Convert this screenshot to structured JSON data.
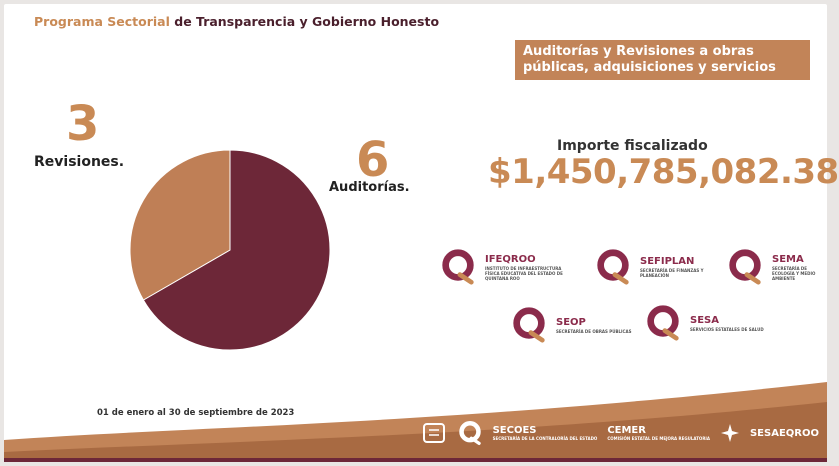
{
  "header": {
    "title_part1": "Programa Sectorial",
    "title_part2": "de Transparencia y Gobierno Honesto"
  },
  "banner": {
    "line1": "Auditorías y Revisiones a obras",
    "line2": "públicas, adquisiciones y servicios"
  },
  "chart_data": {
    "type": "pie",
    "title": "",
    "categories": [
      "Revisiones.",
      "Auditorías."
    ],
    "values": [
      3,
      6
    ],
    "colors": [
      "#bf7f56",
      "#6d2738"
    ]
  },
  "revisiones": {
    "count": "3",
    "label": "Revisiones."
  },
  "auditorias": {
    "count": "6",
    "label": "Auditorías."
  },
  "importe": {
    "label": "Importe fiscalizado",
    "value": "$1,450,785,082.38"
  },
  "entities": [
    {
      "name": "IFEQROO",
      "subtitle": "INSTITUTO DE INFRAESTRUCTURA FÍSICA EDUCATIVA DEL ESTADO DE QUINTANA ROO",
      "icon": "q-logo-icon"
    },
    {
      "name": "SEFIPLAN",
      "subtitle": "SECRETARÍA DE FINANZAS Y PLANEACIÓN",
      "icon": "q-logo-icon"
    },
    {
      "name": "SEMA",
      "subtitle": "SECRETARÍA DE ECOLOGÍA Y MEDIO AMBIENTE",
      "icon": "q-logo-icon"
    },
    {
      "name": "SEOP",
      "subtitle": "SECRETARÍA DE OBRAS PÚBLICAS",
      "icon": "q-logo-icon"
    },
    {
      "name": "SESA",
      "subtitle": "SERVICIOS ESTATALES DE SALUD",
      "icon": "q-logo-icon"
    }
  ],
  "footer": {
    "date": "01 de enero al 30 de septiembre de 2023",
    "logos": [
      {
        "name": "SECOES",
        "subtitle": "SECRETARÍA DE LA CONTRALORÍA DEL ESTADO"
      },
      {
        "name": "CEMER",
        "subtitle": "COMISIÓN ESTATAL DE MEJORA REGULATORIA"
      },
      {
        "name": "SESAEQROO",
        "subtitle": ""
      }
    ]
  },
  "colors": {
    "accent": "#c98a55",
    "maroon": "#6d2738",
    "banner": "#c28458"
  }
}
